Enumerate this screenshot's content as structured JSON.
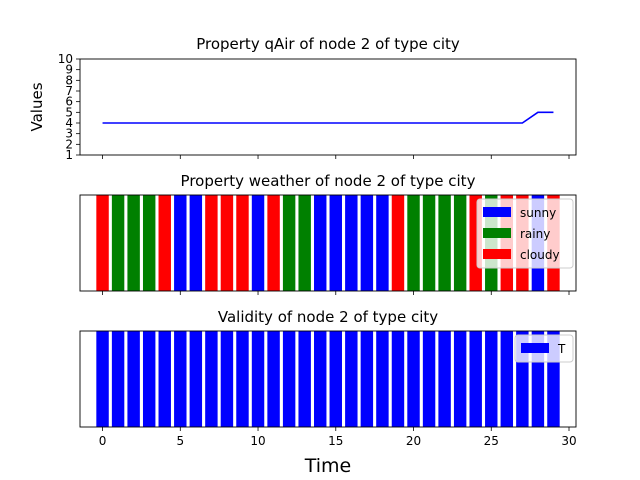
{
  "chart_data": [
    {
      "type": "line",
      "title": "Property qAir of node 2 of type city",
      "ylabel": "Values",
      "xlim": [
        -1.45,
        30.45
      ],
      "ylim": [
        1,
        10
      ],
      "yticks": [
        1,
        2,
        3,
        4,
        5,
        6,
        7,
        8,
        9,
        10
      ],
      "x_tick_positions": [
        0,
        5,
        10,
        15,
        20,
        25,
        30
      ],
      "series": [
        {
          "color": "#0000ff",
          "points": [
            [
              0,
              4
            ],
            [
              27,
              4
            ],
            [
              28,
              5
            ],
            [
              29,
              5
            ]
          ]
        }
      ]
    },
    {
      "type": "bar",
      "title": "Property weather of node 2 of type city",
      "xlim": [
        -1.45,
        30.45
      ],
      "legend_position": "upper-right",
      "x": [
        0,
        1,
        2,
        3,
        4,
        5,
        6,
        7,
        8,
        9,
        10,
        11,
        12,
        13,
        14,
        15,
        16,
        17,
        18,
        19,
        20,
        21,
        22,
        23,
        24,
        25,
        26,
        27,
        28,
        29
      ],
      "values": [
        "cloudy",
        "rainy",
        "rainy",
        "rainy",
        "cloudy",
        "sunny",
        "sunny",
        "cloudy",
        "cloudy",
        "cloudy",
        "sunny",
        "cloudy",
        "rainy",
        "rainy",
        "sunny",
        "sunny",
        "sunny",
        "sunny",
        "sunny",
        "cloudy",
        "rainy",
        "rainy",
        "rainy",
        "rainy",
        "cloudy",
        "rainy",
        "cloudy",
        "cloudy",
        "sunny",
        "cloudy"
      ],
      "legend": [
        {
          "label": "sunny",
          "color": "#0000ff"
        },
        {
          "label": "rainy",
          "color": "#008000"
        },
        {
          "label": "cloudy",
          "color": "#ff0000"
        }
      ]
    },
    {
      "type": "bar",
      "title": "Validity of node 2 of type city",
      "xlabel": "Time",
      "xlim": [
        -1.45,
        30.45
      ],
      "x_ticks": [
        0,
        5,
        10,
        15,
        20,
        25,
        30
      ],
      "x": [
        0,
        1,
        2,
        3,
        4,
        5,
        6,
        7,
        8,
        9,
        10,
        11,
        12,
        13,
        14,
        15,
        16,
        17,
        18,
        19,
        20,
        21,
        22,
        23,
        24,
        25,
        26,
        27,
        28,
        29
      ],
      "values": [
        "T",
        "T",
        "T",
        "T",
        "T",
        "T",
        "T",
        "T",
        "T",
        "T",
        "T",
        "T",
        "T",
        "T",
        "T",
        "T",
        "T",
        "T",
        "T",
        "T",
        "T",
        "T",
        "T",
        "T",
        "T",
        "T",
        "T",
        "T",
        "T",
        "T"
      ],
      "legend_position": "upper-right",
      "legend": [
        {
          "label": "T",
          "color": "#0000ff"
        }
      ]
    }
  ]
}
